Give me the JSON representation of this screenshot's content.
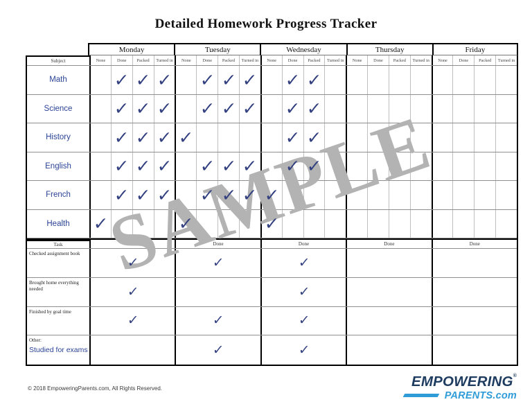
{
  "title": "Detailed Homework Progress Tracker",
  "watermark": "SAMPLE",
  "check_symbol": "✓",
  "table": {
    "subject_header": "Subject",
    "task_header": "Task",
    "done_header": "Done",
    "days": [
      "Monday",
      "Tuesday",
      "Wednesday",
      "Thursday",
      "Friday"
    ],
    "status_columns": [
      "None",
      "Done",
      "Packed",
      "Turned in"
    ],
    "subjects": [
      {
        "name": "Math",
        "marks": [
          0,
          1,
          1,
          1,
          0,
          1,
          1,
          1,
          0,
          1,
          1,
          0,
          0,
          0,
          0,
          0,
          0,
          0,
          0,
          0
        ]
      },
      {
        "name": "Science",
        "marks": [
          0,
          1,
          1,
          1,
          0,
          1,
          1,
          1,
          0,
          1,
          1,
          0,
          0,
          0,
          0,
          0,
          0,
          0,
          0,
          0
        ]
      },
      {
        "name": "History",
        "marks": [
          0,
          1,
          1,
          1,
          1,
          0,
          0,
          0,
          0,
          1,
          1,
          0,
          0,
          0,
          0,
          0,
          0,
          0,
          0,
          0
        ]
      },
      {
        "name": "English",
        "marks": [
          0,
          1,
          1,
          1,
          0,
          1,
          1,
          1,
          0,
          1,
          1,
          0,
          0,
          0,
          0,
          0,
          0,
          0,
          0,
          0
        ]
      },
      {
        "name": "French",
        "marks": [
          0,
          1,
          1,
          1,
          0,
          1,
          1,
          1,
          1,
          0,
          0,
          0,
          0,
          0,
          0,
          0,
          0,
          0,
          0,
          0
        ]
      },
      {
        "name": "Health",
        "marks": [
          1,
          0,
          0,
          0,
          1,
          0,
          0,
          0,
          1,
          0,
          0,
          0,
          0,
          0,
          0,
          0,
          0,
          0,
          0,
          0
        ]
      }
    ],
    "tasks": [
      {
        "name": "Checked assignment book",
        "name_line2": "",
        "marks": [
          1,
          1,
          1,
          0,
          0
        ]
      },
      {
        "name": "Brought home everything needed",
        "name_line2": "",
        "marks": [
          1,
          0,
          1,
          0,
          0
        ]
      },
      {
        "name": "Finished by goal time",
        "name_line2": "",
        "marks": [
          1,
          1,
          1,
          0,
          0
        ]
      },
      {
        "name": "Other:",
        "name_line2": "Studied for exams",
        "marks": [
          0,
          1,
          1,
          0,
          0
        ]
      }
    ]
  },
  "footer": {
    "copyright": "© 2018 EmpoweringParents.com, All Rights Reserved."
  },
  "logo": {
    "line1": "EMPOWERING",
    "registered": "®",
    "parents": "PARENTS",
    "com": ".com"
  },
  "colors": {
    "subject_text": "#2b4396",
    "checkmark": "#32407f",
    "watermark_gray": "#b3b3b3",
    "logo_navy": "#1d3c5f",
    "logo_blue": "#2f9cd8"
  }
}
